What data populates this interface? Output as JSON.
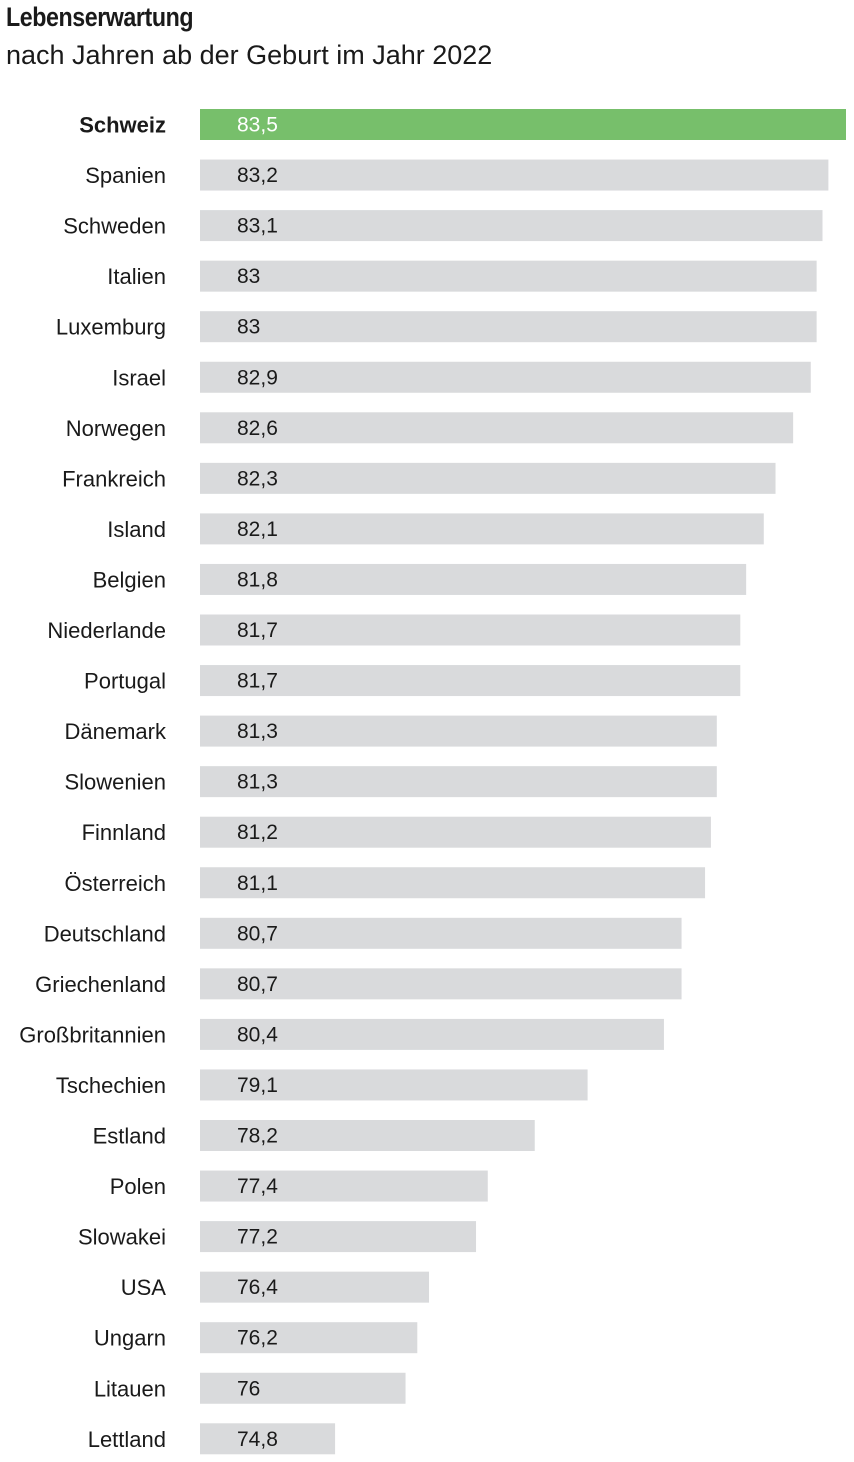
{
  "chart_data": {
    "type": "bar",
    "orientation": "horizontal",
    "title": "Lebenserwartung",
    "subtitle": "nach Jahren ab der Geburt im Jahr 2022",
    "categories": [
      "Schweiz",
      "Spanien",
      "Schweden",
      "Italien",
      "Luxemburg",
      "Israel",
      "Norwegen",
      "Frankreich",
      "Island",
      "Belgien",
      "Niederlande",
      "Portugal",
      "Dänemark",
      "Slowenien",
      "Finnland",
      "Österreich",
      "Deutschland",
      "Griechenland",
      "Großbritannien",
      "Tschechien",
      "Estland",
      "Polen",
      "Slowakei",
      "USA",
      "Ungarn",
      "Litauen",
      "Lettland"
    ],
    "values": [
      83.5,
      83.2,
      83.1,
      83,
      83,
      82.9,
      82.6,
      82.3,
      82.1,
      81.8,
      81.7,
      81.7,
      81.3,
      81.3,
      81.2,
      81.1,
      80.7,
      80.7,
      80.4,
      79.1,
      78.2,
      77.4,
      77.2,
      76.4,
      76.2,
      76,
      74.8
    ],
    "value_labels": [
      "83,5",
      "83,2",
      "83,1",
      "83",
      "83",
      "82,9",
      "82,6",
      "82,3",
      "82,1",
      "81,8",
      "81,7",
      "81,7",
      "81,3",
      "81,3",
      "81,2",
      "81,1",
      "80,7",
      "80,7",
      "80,4",
      "79,1",
      "78,2",
      "77,4",
      "77,2",
      "76,4",
      "76,2",
      "76",
      "74,8"
    ],
    "highlight": "Schweiz",
    "colors": {
      "highlight": "#77bf6b",
      "bar": "#d9dadc",
      "text": "#1a1a1a",
      "highlight_text": "#ffffff"
    },
    "grid": false,
    "legend": "none"
  }
}
